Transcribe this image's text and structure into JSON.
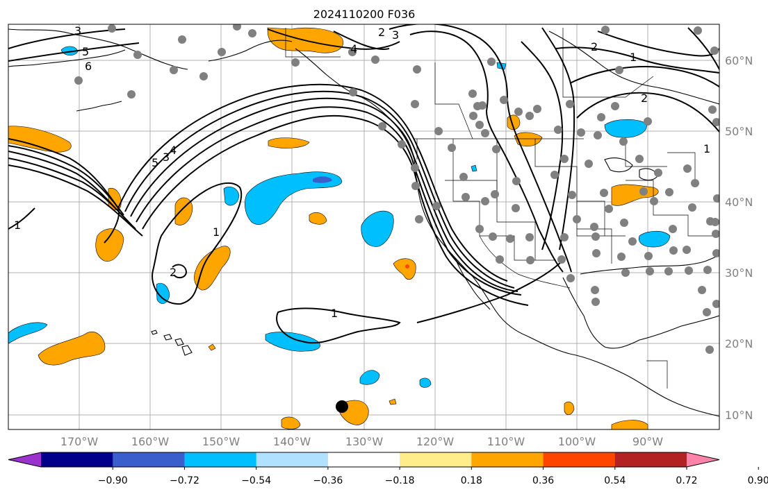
{
  "title": "2024110200 F036",
  "latitude_labels": [
    "60°N",
    "50°N",
    "40°N",
    "30°N",
    "20°N",
    "10°N"
  ],
  "longitude_labels": [
    "170°W",
    "160°W",
    "150°W",
    "140°W",
    "130°W",
    "120°W",
    "110°W",
    "100°W",
    "90°W"
  ],
  "colorbar": {
    "ticks": [
      "−0.90",
      "−0.72",
      "−0.54",
      "−0.36",
      "−0.18",
      "0.18",
      "0.36",
      "0.54",
      "0.72",
      "0.90"
    ],
    "colors": [
      "#9a32cd",
      "#00008b",
      "#3a5fcd",
      "#00bfff",
      "#b0e2ff",
      "#ffffff",
      "#ffec8b",
      "#ffa500",
      "#ff4500",
      "#b22222",
      "#ff82ab"
    ]
  },
  "contour_labels": [
    "1",
    "2",
    "3",
    "4",
    "5",
    "6",
    "1",
    "2",
    "1",
    "1",
    "2",
    "1",
    "2",
    "3",
    "4",
    "5"
  ],
  "markers": {
    "station_color": "#808080",
    "storm_marker_color": "#000000"
  }
}
